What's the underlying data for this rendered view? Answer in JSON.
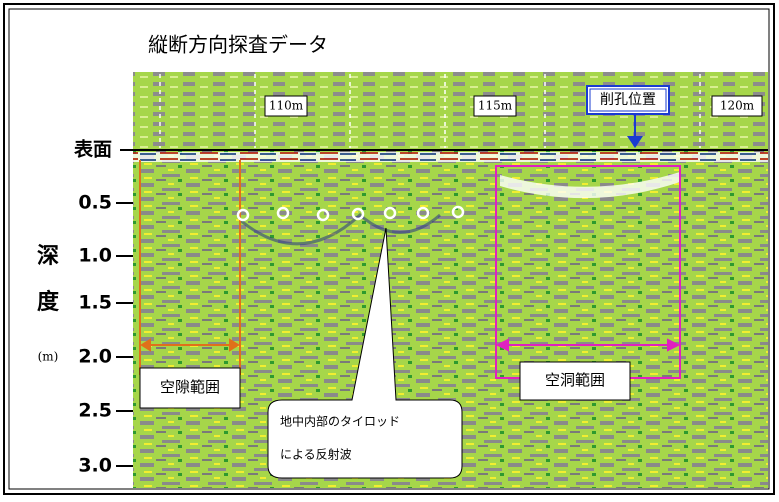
{
  "title": "縦断方向探査データ",
  "distance_labels": [
    "110m",
    "115m",
    "120m"
  ],
  "drill_position": "削孔位置",
  "depth_axis": {
    "surface": "表面",
    "ticks": [
      "0.5",
      "1.0",
      "1.5",
      "2.0",
      "2.5",
      "3.0"
    ],
    "label_chars": [
      "深",
      "度"
    ],
    "unit": "(m)"
  },
  "annotations": {
    "void_range": "空隙範囲",
    "cavity_range": "空洞範囲",
    "callout": [
      "地中内部のタイロッド",
      "による反射波"
    ]
  }
}
